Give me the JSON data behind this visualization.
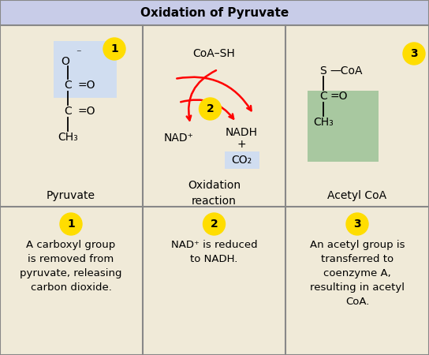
{
  "title": "Oxidation of Pyruvate",
  "title_bg": "#c8cce8",
  "cell_bg": "#f0ead8",
  "border_color": "#888888",
  "yellow": "#ffdd00",
  "blue_hl": "#d0ddf0",
  "green_hl": "#a8c8a0",
  "fig_w": 5.44,
  "fig_h": 4.5,
  "dpi": 100,
  "cells": {
    "top_left_label": "Pyruvate",
    "top_mid_label": "Oxidation\nreaction",
    "top_right_label": "Acetyl CoA",
    "bot_left_text": "A carboxyl group\nis removed from\npyruvate, releasing\ncarbon dioxide.",
    "bot_mid_text": "NAD⁺ is reduced\nto NADH.",
    "bot_right_text": "An acetyl group is\ntransferred to\ncoenzyme A,\nresulting in acetyl\nCoA."
  }
}
